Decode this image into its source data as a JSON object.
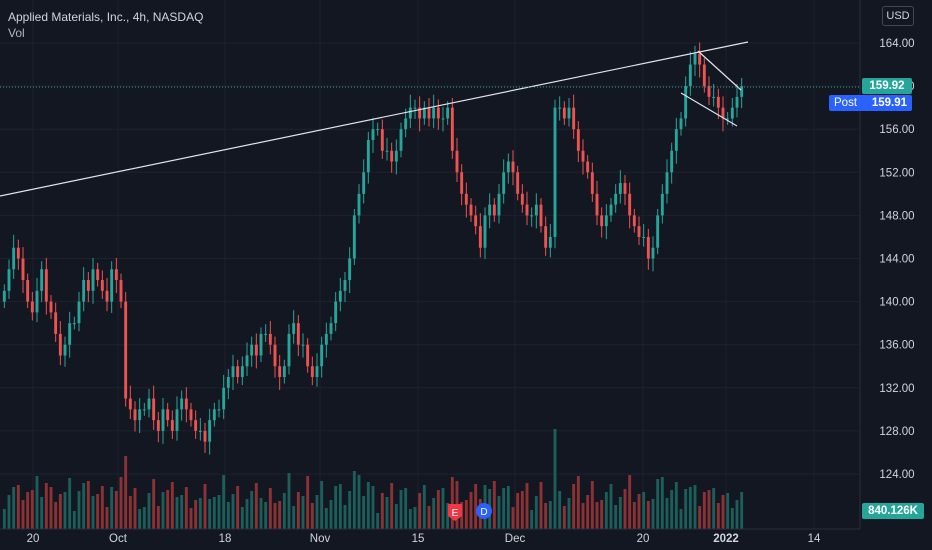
{
  "legend": {
    "title": "Applied Materials, Inc., 4h, NASDAQ",
    "vol": "Vol"
  },
  "currency": "USD",
  "price_tags": {
    "last": {
      "value": "159.92",
      "color": "#26a69a"
    },
    "post": {
      "label": "Post",
      "value": "159.91",
      "color": "#2962ff"
    },
    "volume": {
      "value": "840.126K",
      "color": "#26a69a"
    }
  },
  "event_markers": [
    {
      "label": "E",
      "color": "#f23645"
    },
    {
      "label": "D",
      "color": "#2962ff"
    }
  ],
  "colors": {
    "up": "#26a69a",
    "down": "#ef5350",
    "up_vol": "#1b5e5a",
    "down_vol": "#8c3235",
    "background": "#131722"
  },
  "chart_data": {
    "type": "candlestick",
    "title": "Applied Materials, Inc., 4h, NASDAQ",
    "ylim": [
      120,
      166
    ],
    "y_ticks": [
      "164.00",
      "160.00",
      "156.00",
      "152.00",
      "148.00",
      "144.00",
      "140.00",
      "136.00",
      "132.00",
      "128.00",
      "124.00"
    ],
    "x_ticks": [
      "20",
      "Oct",
      "18",
      "Nov",
      "15",
      "Dec",
      "20",
      "2022",
      "14"
    ],
    "last_price": 159.92,
    "post_price": 159.91,
    "last_volume": "840.126K",
    "closes": [
      141,
      143,
      145,
      144,
      142,
      140,
      139,
      141,
      143,
      140,
      139,
      137,
      135,
      136,
      138,
      138,
      140,
      142,
      141,
      143,
      142,
      141,
      140,
      143,
      142,
      140,
      131,
      130,
      129,
      130,
      130,
      131,
      129,
      128,
      130,
      129,
      128,
      130,
      131,
      130,
      129,
      128,
      128,
      127,
      129,
      130,
      130,
      132,
      133,
      134,
      133,
      134,
      135,
      136,
      135,
      137,
      137,
      136,
      134,
      133,
      134,
      137,
      138,
      136,
      136,
      134,
      133,
      134,
      136,
      137,
      138,
      140,
      141,
      142,
      144,
      148,
      150,
      152,
      155,
      156,
      156,
      154,
      154,
      153,
      154,
      156,
      157,
      158,
      158,
      157,
      158,
      157,
      158,
      157,
      157,
      158,
      154,
      152,
      150,
      149,
      148,
      147,
      145,
      148,
      149,
      148,
      150,
      152,
      153,
      152,
      150,
      149,
      148,
      148,
      149,
      147,
      145,
      146,
      158,
      158,
      157,
      158,
      156,
      154,
      153,
      152,
      150,
      148,
      147,
      148,
      149,
      150,
      151,
      150,
      148,
      147,
      146,
      146,
      144,
      145,
      148,
      150,
      152,
      154,
      156,
      157,
      160,
      162,
      163,
      162,
      160,
      159,
      159,
      158,
      157,
      157,
      158,
      159,
      160
    ]
  }
}
